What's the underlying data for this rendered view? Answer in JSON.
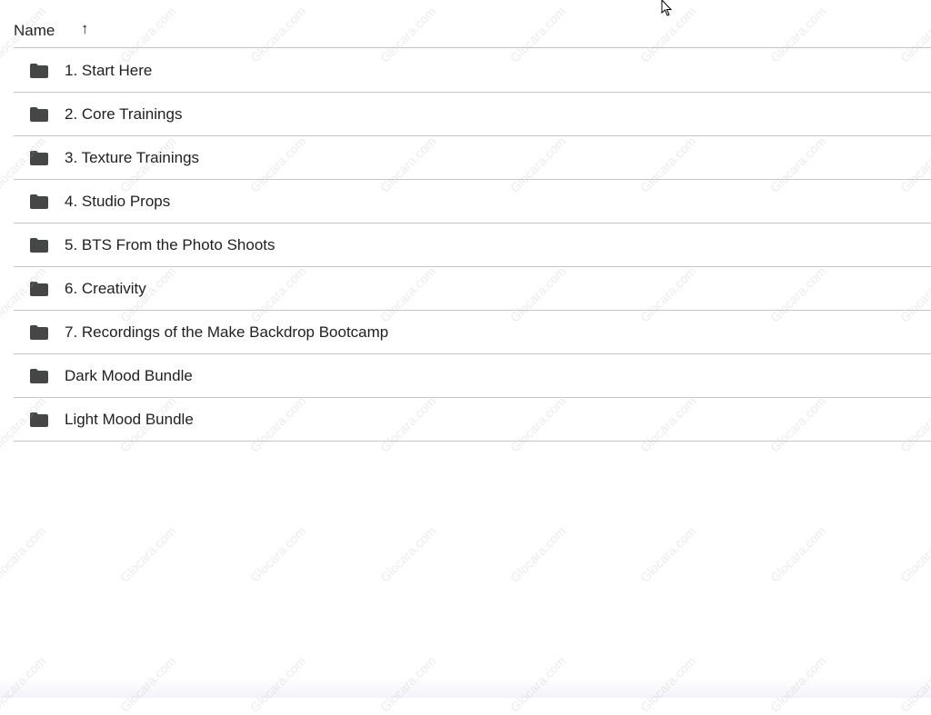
{
  "header": {
    "name_label": "Name",
    "sort_icon": "arrow-up-icon",
    "sort_glyph": "↑"
  },
  "items": [
    {
      "label": "1. Start Here",
      "icon": "folder-icon"
    },
    {
      "label": "2. Core Trainings",
      "icon": "folder-icon"
    },
    {
      "label": "3. Texture Trainings",
      "icon": "folder-icon"
    },
    {
      "label": "4. Studio Props",
      "icon": "folder-icon"
    },
    {
      "label": "5. BTS From the Photo Shoots",
      "icon": "folder-icon"
    },
    {
      "label": "6. Creativity",
      "icon": "folder-icon"
    },
    {
      "label": "7. Recordings of the Make Backdrop Bootcamp",
      "icon": "folder-icon"
    },
    {
      "label": "Dark Mood Bundle",
      "icon": "folder-icon"
    },
    {
      "label": "Light Mood Bundle",
      "icon": "folder-icon"
    }
  ],
  "watermark": "Glocara.com",
  "colors": {
    "folder": "#444746",
    "divider": "#c7c7c7",
    "text": "#1f1f1f"
  }
}
